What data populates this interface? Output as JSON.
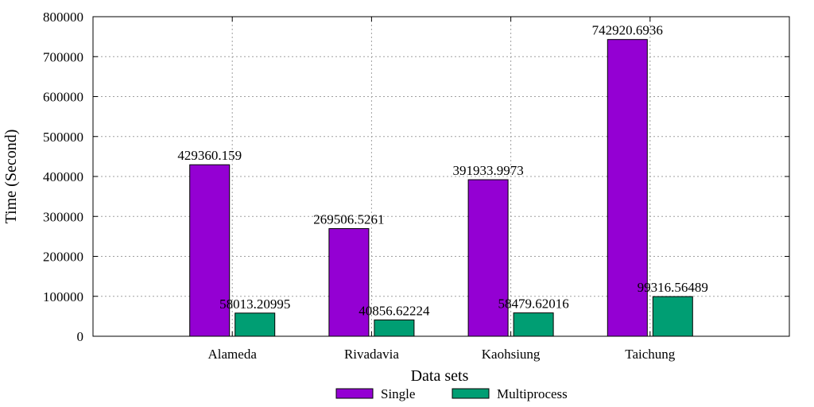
{
  "chart_data": {
    "type": "bar",
    "title": "",
    "xlabel": "Data sets",
    "ylabel": "Time (Second)",
    "categories": [
      "Alameda",
      "Rivadavia",
      "Kaohsiung",
      "Taichung"
    ],
    "series": [
      {
        "name": "Single",
        "color": "#9400d3",
        "values": [
          429360.159,
          269506.5261,
          391933.9973,
          742920.6936
        ],
        "labels": [
          "429360.159",
          "269506.5261",
          "391933.9973",
          "742920.6936"
        ]
      },
      {
        "name": "Multiprocess",
        "color": "#009e73",
        "values": [
          58013.20995,
          40856.62224,
          58479.62016,
          99316.56489
        ],
        "labels": [
          "58013.20995",
          "40856.62224",
          "58479.62016",
          "99316.56489"
        ]
      }
    ],
    "ylim": [
      0,
      800000
    ],
    "yticks": [
      "0",
      "100000",
      "200000",
      "300000",
      "400000",
      "500000",
      "600000",
      "700000",
      "800000"
    ],
    "grid": true,
    "legend_position": "bottom"
  }
}
